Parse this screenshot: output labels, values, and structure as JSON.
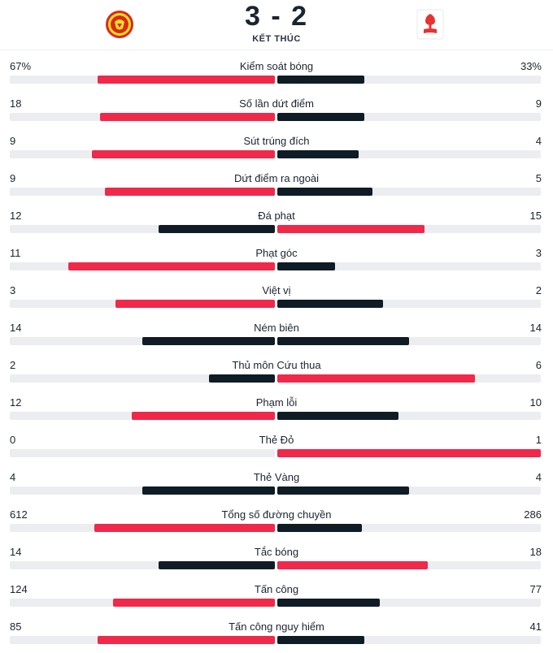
{
  "match": {
    "score": "3 - 2",
    "status": "KẾT THÚC",
    "home_crest": "manchester-united-crest",
    "away_crest": "nottingham-forest-crest"
  },
  "colors": {
    "red": "#f0284a",
    "dark": "#0f1c26",
    "track": "#ebedf0"
  },
  "stats": [
    {
      "label": "Kiểm soát bóng",
      "home": "67%",
      "away": "33%",
      "home_frac": 0.67,
      "away_frac": 0.33,
      "home_color": "red",
      "away_color": "dark"
    },
    {
      "label": "Số lần dứt điểm",
      "home": "18",
      "away": "9",
      "home_frac": 0.66,
      "away_frac": 0.33,
      "home_color": "red",
      "away_color": "dark"
    },
    {
      "label": "Sút trúng đích",
      "home": "9",
      "away": "4",
      "home_frac": 0.69,
      "away_frac": 0.31,
      "home_color": "red",
      "away_color": "dark"
    },
    {
      "label": "Dứt điểm ra ngoài",
      "home": "9",
      "away": "5",
      "home_frac": 0.64,
      "away_frac": 0.36,
      "home_color": "red",
      "away_color": "dark"
    },
    {
      "label": "Đá phạt",
      "home": "12",
      "away": "15",
      "home_frac": 0.44,
      "away_frac": 0.56,
      "home_color": "dark",
      "away_color": "red"
    },
    {
      "label": "Phạt góc",
      "home": "11",
      "away": "3",
      "home_frac": 0.78,
      "away_frac": 0.22,
      "home_color": "red",
      "away_color": "dark"
    },
    {
      "label": "Việt vị",
      "home": "3",
      "away": "2",
      "home_frac": 0.6,
      "away_frac": 0.4,
      "home_color": "red",
      "away_color": "dark"
    },
    {
      "label": "Ném biên",
      "home": "14",
      "away": "14",
      "home_frac": 0.5,
      "away_frac": 0.5,
      "home_color": "dark",
      "away_color": "dark"
    },
    {
      "label": "Thủ môn Cứu thua",
      "home": "2",
      "away": "6",
      "home_frac": 0.25,
      "away_frac": 0.75,
      "home_color": "dark",
      "away_color": "red"
    },
    {
      "label": "Phạm lỗi",
      "home": "12",
      "away": "10",
      "home_frac": 0.54,
      "away_frac": 0.46,
      "home_color": "red",
      "away_color": "dark"
    },
    {
      "label": "Thẻ Đỏ",
      "home": "0",
      "away": "1",
      "home_frac": 0.0,
      "away_frac": 1.0,
      "home_color": "dark",
      "away_color": "red"
    },
    {
      "label": "Thẻ Vàng",
      "home": "4",
      "away": "4",
      "home_frac": 0.5,
      "away_frac": 0.5,
      "home_color": "dark",
      "away_color": "dark"
    },
    {
      "label": "Tổng số đường chuyền",
      "home": "612",
      "away": "286",
      "home_frac": 0.68,
      "away_frac": 0.32,
      "home_color": "red",
      "away_color": "dark"
    },
    {
      "label": "Tắc bóng",
      "home": "14",
      "away": "18",
      "home_frac": 0.44,
      "away_frac": 0.57,
      "home_color": "dark",
      "away_color": "red"
    },
    {
      "label": "Tấn công",
      "home": "124",
      "away": "77",
      "home_frac": 0.61,
      "away_frac": 0.39,
      "home_color": "red",
      "away_color": "dark"
    },
    {
      "label": "Tấn công nguy hiểm",
      "home": "85",
      "away": "41",
      "home_frac": 0.67,
      "away_frac": 0.33,
      "home_color": "red",
      "away_color": "dark"
    }
  ]
}
